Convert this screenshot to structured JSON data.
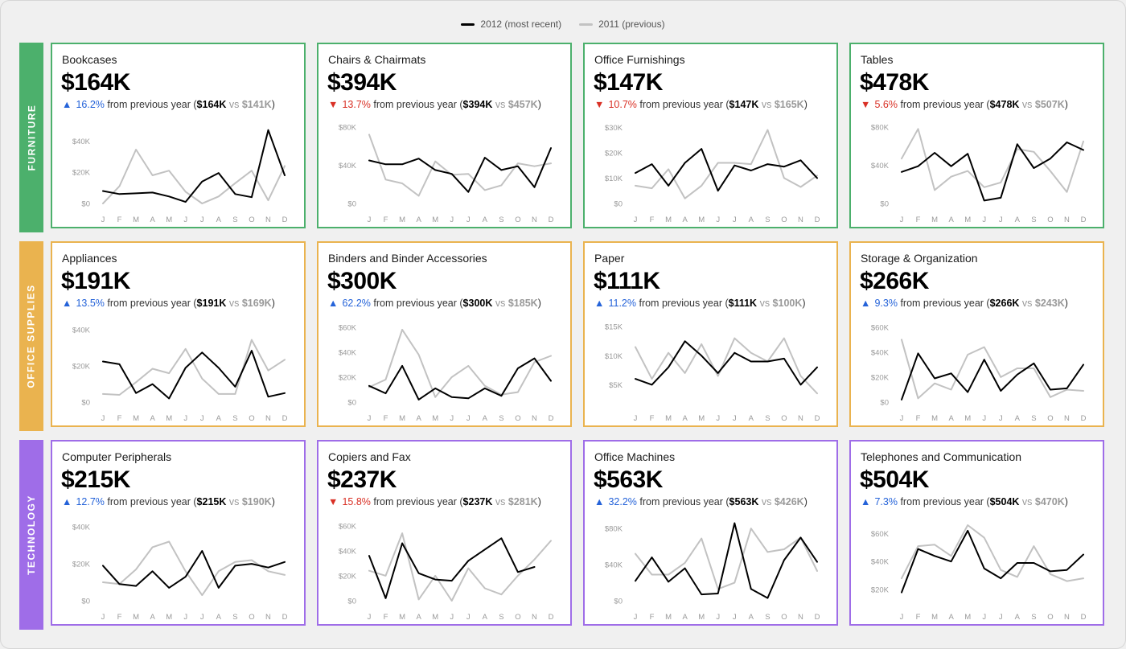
{
  "legend": {
    "current_label": "2012 (most recent)",
    "previous_label": "2011 (previous)",
    "current_color": "#000000",
    "previous_color": "#c2c2c2"
  },
  "months": [
    "J",
    "F",
    "M",
    "A",
    "M",
    "J",
    "J",
    "A",
    "S",
    "O",
    "N",
    "D"
  ],
  "change_phrase": "from previous year",
  "vs_word": "vs",
  "categories": [
    {
      "name": "FURNITURE",
      "color": "#4cb06c"
    },
    {
      "name": "OFFICE SUPPLIES",
      "color": "#eab34f"
    },
    {
      "name": "TECHNOLOGY",
      "color": "#9f6de8"
    }
  ],
  "colors": {
    "up": "#2563d9",
    "down": "#d93025"
  },
  "chart_data": [
    {
      "type": "line",
      "title": "Bookcases",
      "total": "$164K",
      "direction": "up",
      "change": "16.2%",
      "current": "$164K",
      "previous": "$141K",
      "yticks": [
        "$0",
        "$20K",
        "$40K"
      ],
      "ylim": [
        0,
        52
      ],
      "series": [
        {
          "name": "2012 (most recent)",
          "values": [
            8,
            6,
            6.5,
            7,
            4.5,
            1,
            14,
            19.5,
            6,
            4,
            47,
            18
          ]
        },
        {
          "name": "2011 (previous)",
          "values": [
            0,
            11,
            34.5,
            18,
            21,
            7.5,
            0,
            4.5,
            13,
            21,
            2,
            24
          ]
        }
      ]
    },
    {
      "type": "line",
      "title": "Chairs & Chairmats",
      "total": "$394K",
      "direction": "down",
      "change": "13.7%",
      "current": "$394K",
      "previous": "$457K",
      "yticks": [
        "$0",
        "$40K",
        "$80K"
      ],
      "ylim": [
        0,
        85
      ],
      "series": [
        {
          "name": "2012 (most recent)",
          "values": [
            45,
            41,
            41,
            47,
            35,
            31,
            12,
            48,
            35,
            39,
            17,
            58
          ]
        },
        {
          "name": "2011 (previous)",
          "values": [
            72,
            25,
            21,
            8,
            44,
            30,
            31,
            14,
            19,
            42,
            39,
            42
          ]
        }
      ]
    },
    {
      "type": "line",
      "title": "Office Furnishings",
      "total": "$147K",
      "direction": "down",
      "change": "10.7%",
      "current": "$147K",
      "previous": "$165K",
      "yticks": [
        "$0",
        "$10K",
        "$20K",
        "$30K"
      ],
      "ylim": [
        0,
        32
      ],
      "series": [
        {
          "name": "2012 (most recent)",
          "values": [
            12,
            15.5,
            7,
            16,
            21.5,
            5,
            15,
            13,
            15.5,
            14.5,
            17,
            10
          ]
        },
        {
          "name": "2011 (previous)",
          "values": [
            7,
            6,
            13.5,
            2,
            7,
            16,
            16,
            15.5,
            29,
            10,
            6.5,
            11
          ]
        }
      ]
    },
    {
      "type": "line",
      "title": "Tables",
      "total": "$478K",
      "direction": "down",
      "change": "5.6%",
      "current": "$478K",
      "previous": "$507K",
      "yticks": [
        "$0",
        "$40K",
        "$80K"
      ],
      "ylim": [
        0,
        85
      ],
      "series": [
        {
          "name": "2012 (most recent)",
          "values": [
            33,
            39,
            53,
            39,
            52,
            3,
            6,
            62,
            37,
            47,
            64,
            56
          ]
        },
        {
          "name": "2011 (previous)",
          "values": [
            47,
            78,
            14,
            28,
            34,
            17,
            22,
            57,
            54,
            34,
            12,
            65
          ]
        }
      ]
    },
    {
      "type": "line",
      "title": "Appliances",
      "total": "$191K",
      "direction": "up",
      "change": "13.5%",
      "current": "$191K",
      "previous": "$169K",
      "yticks": [
        "$0",
        "$20K",
        "$40K"
      ],
      "ylim": [
        0,
        45
      ],
      "series": [
        {
          "name": "2012 (most recent)",
          "values": [
            22.5,
            21,
            5,
            10,
            2,
            19,
            27.5,
            19,
            8.5,
            28.5,
            3,
            5
          ]
        },
        {
          "name": "2011 (previous)",
          "values": [
            4.5,
            4,
            11,
            18.5,
            16,
            29.5,
            13,
            4.5,
            4.5,
            34.5,
            17.5,
            23.5
          ]
        }
      ]
    },
    {
      "type": "line",
      "title": "Binders and Binder Accessories",
      "total": "$300K",
      "direction": "up",
      "change": "62.2%",
      "current": "$300K",
      "previous": "$185K",
      "yticks": [
        "$0",
        "$20K",
        "$40K",
        "$60K"
      ],
      "ylim": [
        0,
        65
      ],
      "series": [
        {
          "name": "2012 (most recent)",
          "values": [
            13,
            7,
            29,
            2,
            11,
            4,
            3,
            11,
            5,
            27,
            35,
            17
          ]
        },
        {
          "name": "2011 (previous)",
          "values": [
            12,
            18,
            58,
            38,
            4,
            20,
            29,
            13,
            6,
            8,
            32,
            37
          ]
        }
      ]
    },
    {
      "type": "line",
      "title": "Paper",
      "total": "$111K",
      "direction": "up",
      "change": "11.2%",
      "current": "$111K",
      "previous": "$100K",
      "yticks": [
        "$5K",
        "$10K",
        "$15K"
      ],
      "ylim": [
        2,
        16
      ],
      "series": [
        {
          "name": "2012 (most recent)",
          "values": [
            6,
            5,
            8,
            12.5,
            10,
            7,
            10.5,
            9,
            9,
            9.5,
            5,
            8
          ]
        },
        {
          "name": "2011 (previous)",
          "values": [
            11.5,
            6,
            10.5,
            7,
            12,
            6.5,
            13,
            10.5,
            9,
            13,
            6.5,
            3.5
          ]
        }
      ]
    },
    {
      "type": "line",
      "title": "Storage & Organization",
      "total": "$266K",
      "direction": "up",
      "change": "9.3%",
      "current": "$266K",
      "previous": "$243K",
      "yticks": [
        "$0",
        "$20K",
        "$40K",
        "$60K"
      ],
      "ylim": [
        0,
        65
      ],
      "series": [
        {
          "name": "2012 (most recent)",
          "values": [
            2,
            39,
            19,
            23,
            8,
            34,
            9,
            22,
            31,
            10,
            11,
            30
          ]
        },
        {
          "name": "2011 (previous)",
          "values": [
            50,
            3,
            15,
            10,
            38,
            44,
            20,
            27,
            27,
            4,
            10,
            9
          ]
        }
      ]
    },
    {
      "type": "line",
      "title": "Computer Peripherals",
      "total": "$215K",
      "direction": "up",
      "change": "12.7%",
      "current": "$215K",
      "previous": "$190K",
      "yticks": [
        "$0",
        "$20K",
        "$40K"
      ],
      "ylim": [
        0,
        44
      ],
      "series": [
        {
          "name": "2012 (most recent)",
          "values": [
            19,
            9,
            8,
            16,
            7,
            13,
            27,
            7,
            19,
            20,
            18,
            21
          ]
        },
        {
          "name": "2011 (previous)",
          "values": [
            10,
            9,
            17,
            29,
            32,
            16,
            3,
            16,
            21,
            22,
            16,
            14
          ]
        }
      ]
    },
    {
      "type": "line",
      "title": "Copiers and Fax",
      "total": "$237K",
      "direction": "down",
      "change": "15.8%",
      "current": "$237K",
      "previous": "$281K",
      "yticks": [
        "$0",
        "$20K",
        "$40K",
        "$60K"
      ],
      "ylim": [
        0,
        65
      ],
      "series": [
        {
          "name": "2012 (most recent)",
          "values": [
            36,
            2,
            46,
            22,
            17,
            16,
            32,
            41,
            50,
            23,
            27,
            null
          ]
        },
        {
          "name": "2011 (previous)",
          "values": [
            24,
            20,
            54,
            1,
            20,
            0,
            26,
            10,
            5,
            20,
            33,
            48
          ]
        }
      ]
    },
    {
      "type": "line",
      "title": "Office Machines",
      "total": "$563K",
      "direction": "up",
      "change": "32.2%",
      "current": "$563K",
      "previous": "$426K",
      "yticks": [
        "$0",
        "$40K",
        "$80K"
      ],
      "ylim": [
        0,
        90
      ],
      "series": [
        {
          "name": "2012 (most recent)",
          "values": [
            22,
            48,
            21,
            36,
            7,
            8,
            86,
            13,
            3,
            45,
            70,
            43
          ]
        },
        {
          "name": "2011 (previous)",
          "values": [
            52,
            29,
            29,
            42,
            69,
            13,
            20,
            80,
            54,
            57,
            70,
            33
          ]
        }
      ]
    },
    {
      "type": "line",
      "title": "Telephones and Communication",
      "total": "$504K",
      "direction": "up",
      "change": "7.3%",
      "current": "$504K",
      "previous": "$470K",
      "yticks": [
        "$20K",
        "$40K",
        "$60K"
      ],
      "ylim": [
        12,
        70
      ],
      "series": [
        {
          "name": "2012 (most recent)",
          "values": [
            18,
            49,
            44,
            40,
            62,
            35,
            28,
            39,
            39,
            33,
            34,
            45
          ]
        },
        {
          "name": "2011 (previous)",
          "values": [
            28,
            51,
            52,
            44,
            66,
            57,
            34,
            29,
            51,
            31,
            26,
            28
          ]
        }
      ]
    }
  ]
}
